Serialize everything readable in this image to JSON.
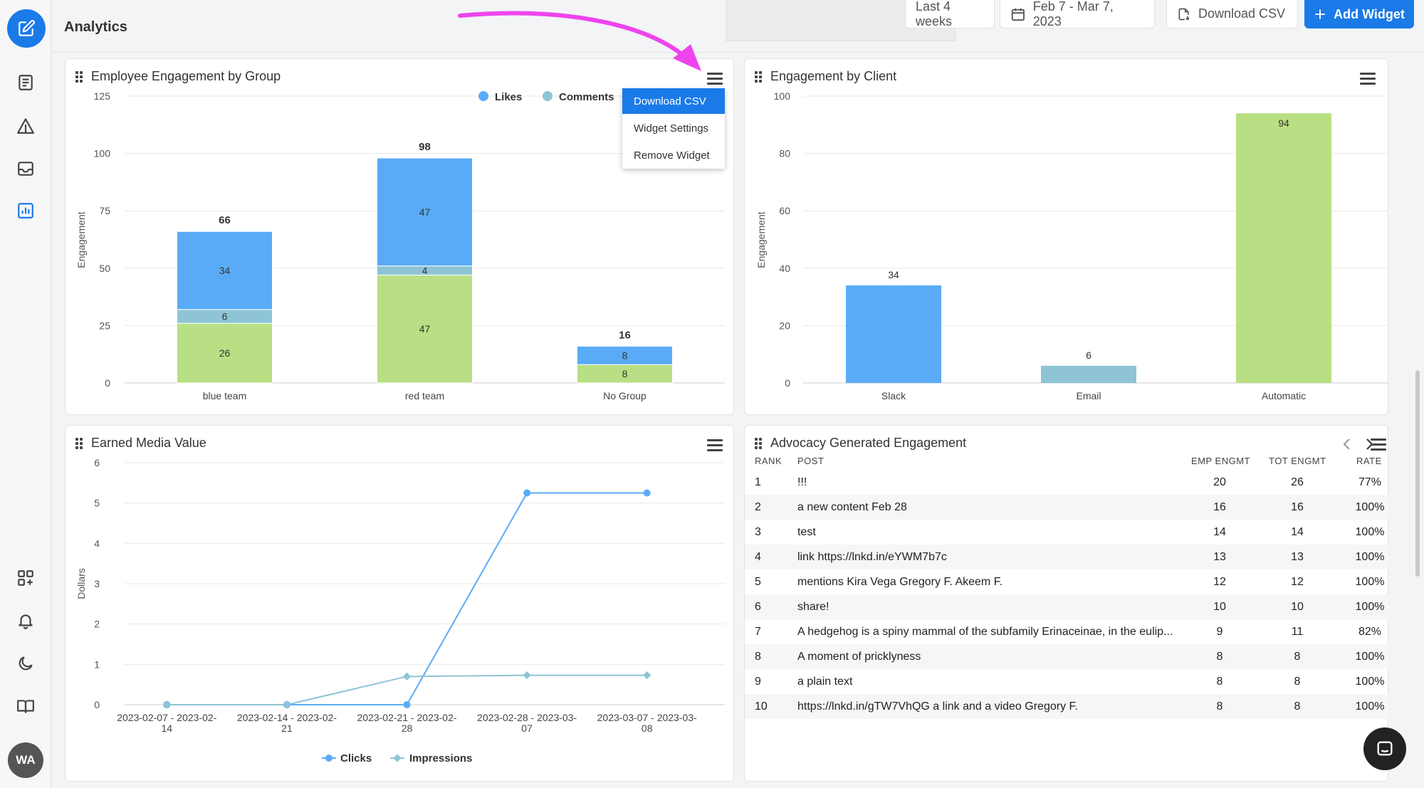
{
  "page": {
    "title": "Analytics"
  },
  "topbar": {
    "range": "Last 4 weeks",
    "dates": "Feb 7 - Mar 7, 2023",
    "download": "Download CSV",
    "add_widget": "Add Widget"
  },
  "user": {
    "initials": "WA"
  },
  "sidebar": {
    "icons": [
      "compose-icon",
      "newspaper-icon",
      "alert-triangle-icon",
      "inbox-icon",
      "analytics-icon",
      "add-widget-grid-icon",
      "bell-icon",
      "moon-icon",
      "book-icon"
    ]
  },
  "colors": {
    "likes": "#5aabf7",
    "comments": "#8ec4d6",
    "shares": "#b8df83",
    "accent": "#1a7ae8",
    "arrow": "#ee44ee"
  },
  "widgets": {
    "group": {
      "title": "Employee Engagement by Group",
      "legend_likes": "Likes",
      "legend_comments": "Comments"
    },
    "client": {
      "title": "Engagement by Client"
    },
    "emv": {
      "title": "Earned Media Value",
      "legend_clicks": "Clicks",
      "legend_impressions": "Impressions"
    },
    "advocacy": {
      "title": "Advocacy Generated Engagement"
    }
  },
  "menu": {
    "items": [
      "Download CSV",
      "Widget Settings",
      "Remove Widget"
    ],
    "active": 0
  },
  "chart_data": [
    {
      "type": "bar",
      "stacked": true,
      "categories": [
        "blue team",
        "red team",
        "No Group"
      ],
      "series": [
        {
          "name": "",
          "values": [
            26,
            47,
            8
          ],
          "color": "#b8df83"
        },
        {
          "name": "Comments",
          "values": [
            6,
            4,
            0
          ],
          "color": "#8ec4d6"
        },
        {
          "name": "Likes",
          "values": [
            34,
            47,
            8
          ],
          "color": "#5aabf7"
        }
      ],
      "totals": [
        66,
        98,
        16
      ],
      "ylabel": "Engagement",
      "ylim": [
        0,
        125
      ],
      "yticks": [
        0,
        25,
        50,
        75,
        100,
        125
      ],
      "legend": "top-right",
      "grid": true
    },
    {
      "type": "bar",
      "categories": [
        "Slack",
        "Email",
        "Automatic"
      ],
      "values": [
        34,
        6,
        94
      ],
      "colors": [
        "#5aabf7",
        "#8ec4d6",
        "#b8df83"
      ],
      "ylabel": "Engagement",
      "ylim": [
        0,
        100
      ],
      "yticks": [
        0,
        20,
        40,
        60,
        80,
        100
      ],
      "grid": true
    },
    {
      "type": "line",
      "x": [
        "2023-02-07 - 2023-02-14",
        "2023-02-14 - 2023-02-21",
        "2023-02-21 - 2023-02-28",
        "2023-02-28 - 2023-03-07",
        "2023-03-07 - 2023-03-08"
      ],
      "x_tick_lines": [
        [
          "2023-02-07 - 2023-02-",
          "14"
        ],
        [
          "2023-02-14 - 2023-02-",
          "21"
        ],
        [
          "2023-02-21 - 2023-02-",
          "28"
        ],
        [
          "2023-02-28 - 2023-03-",
          "07"
        ],
        [
          "2023-03-07 - 2023-03-",
          "08"
        ]
      ],
      "series": [
        {
          "name": "Clicks",
          "values": [
            0,
            0,
            0,
            5.25,
            5.25
          ],
          "color": "#5aabf7"
        },
        {
          "name": "Impressions",
          "values": [
            0,
            0,
            0.7,
            0.73,
            0.73
          ],
          "color": "#8ec4d6"
        }
      ],
      "ylabel": "Dollars",
      "ylim": [
        0,
        6
      ],
      "yticks": [
        0,
        1,
        2,
        3,
        4,
        5,
        6
      ],
      "legend": "bottom",
      "grid": true
    },
    {
      "type": "table",
      "columns": [
        "RANK",
        "POST",
        "EMP ENGMT",
        "TOT ENGMT",
        "RATE"
      ],
      "rows": [
        [
          "1",
          "!!!",
          "20",
          "26",
          "77%"
        ],
        [
          "2",
          "a new content Feb 28",
          "16",
          "16",
          "100%"
        ],
        [
          "3",
          "test",
          "14",
          "14",
          "100%"
        ],
        [
          "4",
          "link https://lnkd.in/eYWM7b7c",
          "13",
          "13",
          "100%"
        ],
        [
          "5",
          "mentions Kira Vega Gregory F. Akeem F.",
          "12",
          "12",
          "100%"
        ],
        [
          "6",
          "share!",
          "10",
          "10",
          "100%"
        ],
        [
          "7",
          "A hedgehog is a spiny mammal of the subfamily Erinaceinae, in the eulip...",
          "9",
          "11",
          "82%"
        ],
        [
          "8",
          "A moment of pricklyness",
          "8",
          "8",
          "100%"
        ],
        [
          "9",
          "a plain text",
          "8",
          "8",
          "100%"
        ],
        [
          "10",
          "https://lnkd.in/gTW7VhQG a link and a video Gregory F.",
          "8",
          "8",
          "100%"
        ]
      ]
    }
  ]
}
